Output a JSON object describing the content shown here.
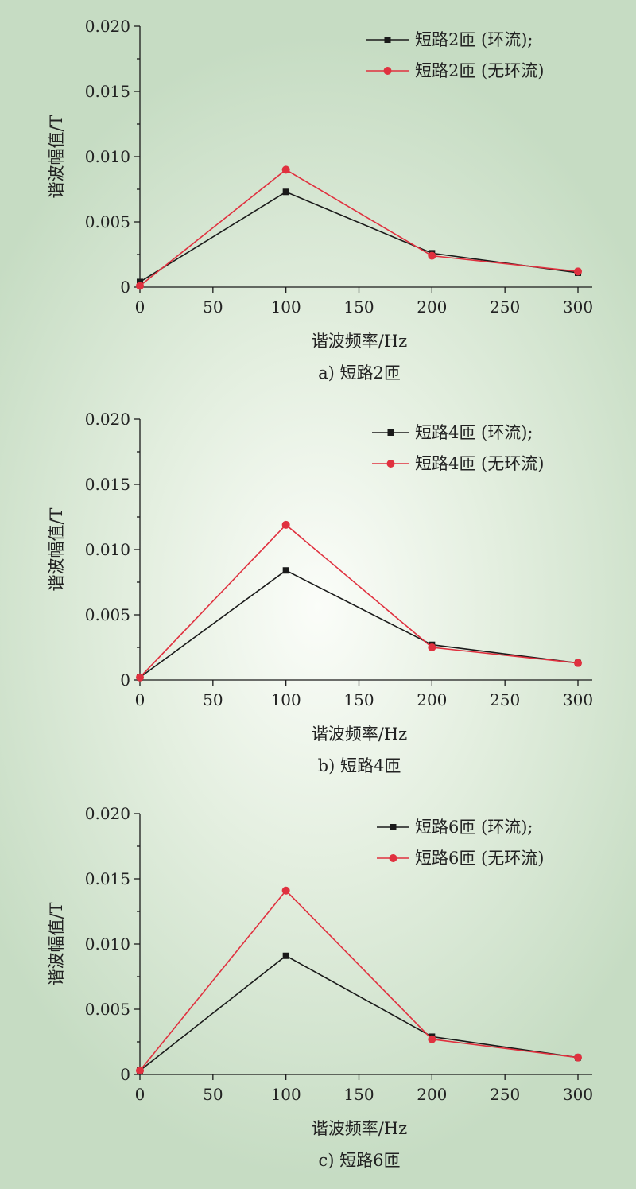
{
  "chart_data": [
    {
      "type": "line",
      "caption": "a) 短路2匝",
      "xlabel": "谐波频率/Hz",
      "ylabel": "谐波幅值/T",
      "xlim": [
        0,
        300
      ],
      "ylim": [
        0,
        0.02
      ],
      "xticks": [
        "0",
        "50",
        "100",
        "150",
        "200",
        "250",
        "300"
      ],
      "yticks": [
        "0",
        "0.005",
        "0.010",
        "0.015",
        "0.020"
      ],
      "grid": false,
      "legend_position": "top-right",
      "x": [
        0,
        100,
        200,
        300
      ],
      "series": [
        {
          "name": "短路2匝 (环流);",
          "color": "#1a1a1a",
          "marker": "square",
          "values": [
            0.0004,
            0.0073,
            0.0026,
            0.0011
          ]
        },
        {
          "name": "短路2匝 (无环流)",
          "color": "#e0313f",
          "marker": "circle",
          "values": [
            0.0001,
            0.009,
            0.0024,
            0.0012
          ]
        }
      ]
    },
    {
      "type": "line",
      "caption": "b) 短路4匝",
      "xlabel": "谐波频率/Hz",
      "ylabel": "谐波幅值/T",
      "xlim": [
        0,
        300
      ],
      "ylim": [
        0,
        0.02
      ],
      "xticks": [
        "0",
        "50",
        "100",
        "150",
        "200",
        "250",
        "300"
      ],
      "yticks": [
        "0",
        "0.005",
        "0.010",
        "0.015",
        "0.020"
      ],
      "grid": false,
      "legend_position": "top-right",
      "x": [
        0,
        100,
        200,
        300
      ],
      "series": [
        {
          "name": "短路4匝 (环流);",
          "color": "#1a1a1a",
          "marker": "square",
          "values": [
            0.0002,
            0.0084,
            0.0027,
            0.0013
          ]
        },
        {
          "name": "短路4匝 (无环流)",
          "color": "#e0313f",
          "marker": "circle",
          "values": [
            0.0002,
            0.0119,
            0.0025,
            0.0013
          ]
        }
      ]
    },
    {
      "type": "line",
      "caption": "c) 短路6匝",
      "xlabel": "谐波频率/Hz",
      "ylabel": "谐波幅值/T",
      "xlim": [
        0,
        300
      ],
      "ylim": [
        0,
        0.02
      ],
      "xticks": [
        "0",
        "50",
        "100",
        "150",
        "200",
        "250",
        "300"
      ],
      "yticks": [
        "0",
        "0.005",
        "0.010",
        "0.015",
        "0.020"
      ],
      "grid": false,
      "legend_position": "top-right",
      "x": [
        0,
        100,
        200,
        300
      ],
      "series": [
        {
          "name": "短路6匝 (环流);",
          "color": "#1a1a1a",
          "marker": "square",
          "values": [
            0.0003,
            0.0091,
            0.0029,
            0.0013
          ]
        },
        {
          "name": "短路6匝 (无环流)",
          "color": "#e0313f",
          "marker": "circle",
          "values": [
            0.0003,
            0.0141,
            0.0027,
            0.0013
          ]
        }
      ]
    }
  ]
}
